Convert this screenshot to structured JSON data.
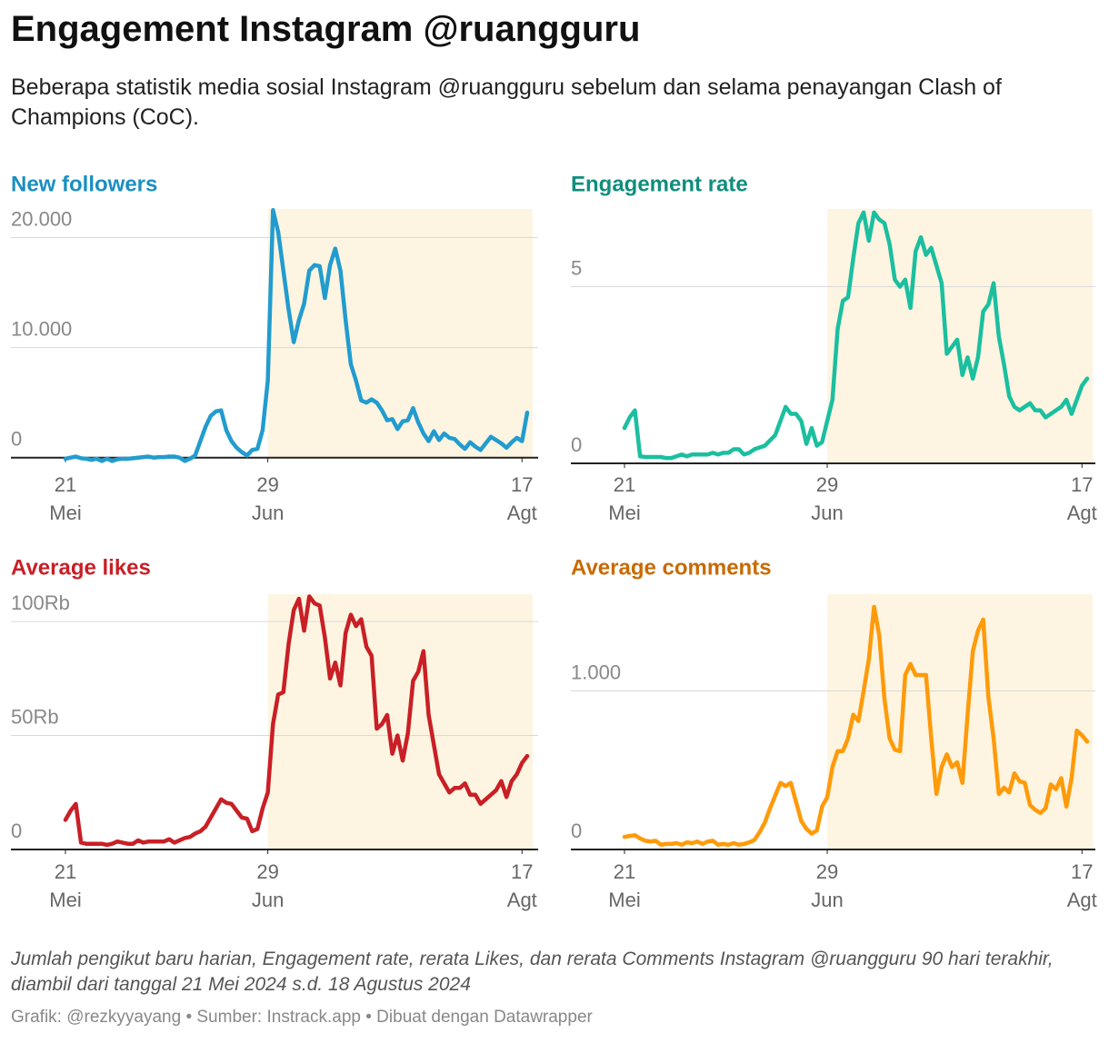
{
  "title": "Engagement Instagram @ruangguru",
  "subtitle": "Beberapa statistik media sosial Instagram @ruangguru sebelum dan selama penayangan Clash of Champions (CoC).",
  "note": "Jumlah pengikut baru harian, Engagement rate, rerata Likes, dan rerata Comments Instagram @ruangguru 90 hari terakhir, diambil dari tanggal 21 Mei 2024 s.d. 18 Agustus 2024",
  "credits": "Grafik: @rezkyyayang • Sumber: Instrack.app • Dibuat dengan Datawrapper",
  "chart_data": [
    {
      "type": "line",
      "title": "New followers",
      "title_color": "#1a8fc0",
      "color": "#229ccf",
      "x": [
        "21 Mei",
        "22 Mei",
        "23 Mei",
        "24 Mei",
        "25 Mei",
        "26 Mei",
        "27 Mei",
        "28 Mei",
        "29 Mei",
        "30 Mei",
        "31 Mei",
        "1 Jun",
        "2 Jun",
        "3 Jun",
        "4 Jun",
        "5 Jun",
        "6 Jun",
        "7 Jun",
        "8 Jun",
        "9 Jun",
        "10 Jun",
        "11 Jun",
        "12 Jun",
        "13 Jun",
        "14 Jun",
        "15 Jun",
        "16 Jun",
        "17 Jun",
        "18 Jun",
        "19 Jun",
        "20 Jun",
        "21 Jun",
        "22 Jun",
        "23 Jun",
        "24 Jun",
        "25 Jun",
        "26 Jun",
        "27 Jun",
        "28 Jun",
        "29 Jun",
        "30 Jun",
        "1 Jul",
        "2 Jul",
        "3 Jul",
        "4 Jul",
        "5 Jul",
        "6 Jul",
        "7 Jul",
        "8 Jul",
        "9 Jul",
        "10 Jul",
        "11 Jul",
        "12 Jul",
        "13 Jul",
        "14 Jul",
        "15 Jul",
        "16 Jul",
        "17 Jul",
        "18 Jul",
        "19 Jul",
        "20 Jul",
        "21 Jul",
        "22 Jul",
        "23 Jul",
        "24 Jul",
        "25 Jul",
        "26 Jul",
        "27 Jul",
        "28 Jul",
        "29 Jul",
        "30 Jul",
        "31 Jul",
        "1 Agt",
        "2 Agt",
        "3 Agt",
        "4 Agt",
        "5 Agt",
        "6 Agt",
        "7 Agt",
        "8 Agt",
        "9 Agt",
        "10 Agt",
        "11 Agt",
        "12 Agt",
        "13 Agt",
        "14 Agt",
        "15 Agt",
        "16 Agt",
        "17 Agt",
        "18 Agt"
      ],
      "values": [
        -100,
        0,
        100,
        -50,
        -100,
        -200,
        -100,
        -300,
        -100,
        -300,
        -150,
        -100,
        -100,
        -50,
        0,
        50,
        100,
        0,
        50,
        50,
        100,
        100,
        0,
        -300,
        -100,
        200,
        1500,
        2800,
        3800,
        4200,
        4300,
        2500,
        1500,
        900,
        500,
        200,
        700,
        800,
        2500,
        7000,
        22500,
        20500,
        17000,
        13500,
        10500,
        12500,
        14000,
        17000,
        17500,
        17400,
        14500,
        17500,
        19000,
        17000,
        12500,
        8500,
        7000,
        5200,
        5000,
        5300,
        5000,
        4300,
        3400,
        3500,
        2600,
        3300,
        3400,
        4500,
        3200,
        2200,
        1500,
        2400,
        1600,
        2200,
        1800,
        1700,
        1200,
        800,
        1400,
        1000,
        700,
        1300,
        1900,
        1600,
        1300,
        900,
        1400,
        1800,
        1500,
        4100
      ],
      "ylim": [
        -600,
        22600
      ],
      "yticks": [
        0,
        {
          "value": 10000,
          "label": "10.000"
        },
        {
          "value": 20000,
          "label": "20.000"
        }
      ],
      "xticks": [
        {
          "value": "21 Mei",
          "label": [
            "21",
            "Mei"
          ]
        },
        {
          "value": "29 Jun",
          "label": [
            "29",
            "Jun"
          ]
        },
        {
          "value": "17 Agt",
          "label": [
            "17",
            "Agt"
          ]
        }
      ],
      "highlight": {
        "from": "29 Jun",
        "to": "18 Agt",
        "color": "#fdf5e1"
      }
    },
    {
      "type": "line",
      "title": "Engagement rate",
      "title_color": "#0f8e7d",
      "color": "#1bbf9f",
      "x": [
        "21 Mei",
        "22 Mei",
        "23 Mei",
        "24 Mei",
        "25 Mei",
        "26 Mei",
        "27 Mei",
        "28 Mei",
        "29 Mei",
        "30 Mei",
        "31 Mei",
        "1 Jun",
        "2 Jun",
        "3 Jun",
        "4 Jun",
        "5 Jun",
        "6 Jun",
        "7 Jun",
        "8 Jun",
        "9 Jun",
        "10 Jun",
        "11 Jun",
        "12 Jun",
        "13 Jun",
        "14 Jun",
        "15 Jun",
        "16 Jun",
        "17 Jun",
        "18 Jun",
        "19 Jun",
        "20 Jun",
        "21 Jun",
        "22 Jun",
        "23 Jun",
        "24 Jun",
        "25 Jun",
        "26 Jun",
        "27 Jun",
        "28 Jun",
        "29 Jun",
        "30 Jun",
        "1 Jul",
        "2 Jul",
        "3 Jul",
        "4 Jul",
        "5 Jul",
        "6 Jul",
        "7 Jul",
        "8 Jul",
        "9 Jul",
        "10 Jul",
        "11 Jul",
        "12 Jul",
        "13 Jul",
        "14 Jul",
        "15 Jul",
        "16 Jul",
        "17 Jul",
        "18 Jul",
        "19 Jul",
        "20 Jul",
        "21 Jul",
        "22 Jul",
        "23 Jul",
        "24 Jul",
        "25 Jul",
        "26 Jul",
        "27 Jul",
        "28 Jul",
        "29 Jul",
        "30 Jul",
        "31 Jul",
        "1 Agt",
        "2 Agt",
        "3 Agt",
        "4 Agt",
        "5 Agt",
        "6 Agt",
        "7 Agt",
        "8 Agt",
        "9 Agt",
        "10 Agt",
        "11 Agt",
        "12 Agt",
        "13 Agt",
        "14 Agt",
        "15 Agt",
        "16 Agt",
        "17 Agt",
        "18 Agt"
      ],
      "values": [
        1.0,
        1.3,
        1.5,
        0.2,
        0.18,
        0.18,
        0.18,
        0.18,
        0.15,
        0.15,
        0.2,
        0.25,
        0.2,
        0.25,
        0.25,
        0.25,
        0.25,
        0.3,
        0.25,
        0.3,
        0.3,
        0.4,
        0.4,
        0.25,
        0.3,
        0.4,
        0.45,
        0.5,
        0.65,
        0.8,
        1.2,
        1.6,
        1.4,
        1.4,
        1.2,
        0.55,
        1.0,
        0.5,
        0.6,
        1.2,
        1.8,
        3.8,
        4.6,
        4.7,
        5.8,
        6.8,
        7.1,
        6.3,
        7.1,
        6.9,
        6.8,
        6.2,
        5.2,
        5.0,
        5.2,
        4.4,
        6.0,
        6.4,
        5.9,
        6.1,
        5.6,
        5.1,
        3.1,
        3.3,
        3.5,
        2.5,
        3.0,
        2.4,
        3.0,
        4.3,
        4.5,
        5.1,
        3.6,
        2.8,
        1.9,
        1.6,
        1.5,
        1.6,
        1.7,
        1.5,
        1.5,
        1.3,
        1.4,
        1.5,
        1.6,
        1.8,
        1.4,
        1.8,
        2.2,
        2.4
      ],
      "ylim": [
        0,
        7.2
      ],
      "yticks": [
        0,
        5
      ],
      "xticks": [
        {
          "value": "21 Mei",
          "label": [
            "21",
            "Mei"
          ]
        },
        {
          "value": "29 Jun",
          "label": [
            "29",
            "Jun"
          ]
        },
        {
          "value": "17 Agt",
          "label": [
            "17",
            "Agt"
          ]
        }
      ],
      "highlight": {
        "from": "29 Jun",
        "to": "18 Agt",
        "color": "#fdf5e1"
      }
    },
    {
      "type": "line",
      "title": "Average likes",
      "title_color": "#c91f26",
      "color": "#c91f26",
      "x": [
        "21 Mei",
        "22 Mei",
        "23 Mei",
        "24 Mei",
        "25 Mei",
        "26 Mei",
        "27 Mei",
        "28 Mei",
        "29 Mei",
        "30 Mei",
        "31 Mei",
        "1 Jun",
        "2 Jun",
        "3 Jun",
        "4 Jun",
        "5 Jun",
        "6 Jun",
        "7 Jun",
        "8 Jun",
        "9 Jun",
        "10 Jun",
        "11 Jun",
        "12 Jun",
        "13 Jun",
        "14 Jun",
        "15 Jun",
        "16 Jun",
        "17 Jun",
        "18 Jun",
        "19 Jun",
        "20 Jun",
        "21 Jun",
        "22 Jun",
        "23 Jun",
        "24 Jun",
        "25 Jun",
        "26 Jun",
        "27 Jun",
        "28 Jun",
        "29 Jun",
        "30 Jun",
        "1 Jul",
        "2 Jul",
        "3 Jul",
        "4 Jul",
        "5 Jul",
        "6 Jul",
        "7 Jul",
        "8 Jul",
        "9 Jul",
        "10 Jul",
        "11 Jul",
        "12 Jul",
        "13 Jul",
        "14 Jul",
        "15 Jul",
        "16 Jul",
        "17 Jul",
        "18 Jul",
        "19 Jul",
        "20 Jul",
        "21 Jul",
        "22 Jul",
        "23 Jul",
        "24 Jul",
        "25 Jul",
        "26 Jul",
        "27 Jul",
        "28 Jul",
        "29 Jul",
        "30 Jul",
        "31 Jul",
        "1 Agt",
        "2 Agt",
        "3 Agt",
        "4 Agt",
        "5 Agt",
        "6 Agt",
        "7 Agt",
        "8 Agt",
        "9 Agt",
        "10 Agt",
        "11 Agt",
        "12 Agt",
        "13 Agt",
        "14 Agt",
        "15 Agt",
        "16 Agt",
        "17 Agt",
        "18 Agt"
      ],
      "values": [
        13000,
        17000,
        20000,
        3000,
        2500,
        2500,
        2500,
        2500,
        2000,
        2500,
        3500,
        3000,
        2500,
        2500,
        4000,
        3000,
        3500,
        3500,
        3500,
        3500,
        4500,
        3000,
        4000,
        5000,
        5500,
        7000,
        8000,
        10000,
        14000,
        18000,
        22000,
        20500,
        20000,
        17000,
        14000,
        13500,
        8000,
        9000,
        18000,
        25000,
        55000,
        68000,
        69000,
        90000,
        105000,
        110000,
        96000,
        111000,
        108000,
        107000,
        93000,
        75000,
        82000,
        72000,
        95000,
        103000,
        98000,
        101000,
        89000,
        85000,
        53000,
        55000,
        59000,
        42000,
        50000,
        39000,
        51000,
        74000,
        78000,
        87000,
        59000,
        46000,
        33000,
        29000,
        25000,
        27000,
        27000,
        29000,
        24000,
        24000,
        20000,
        22000,
        24000,
        26000,
        30000,
        23000,
        30000,
        33000,
        38000,
        41000
      ],
      "ylim": [
        0,
        112000
      ],
      "yticks": [
        0,
        {
          "value": 50000,
          "label": "50Rb"
        },
        {
          "value": 100000,
          "label": "100Rb"
        }
      ],
      "xticks": [
        {
          "value": "21 Mei",
          "label": [
            "21",
            "Mei"
          ]
        },
        {
          "value": "29 Jun",
          "label": [
            "29",
            "Jun"
          ]
        },
        {
          "value": "17 Agt",
          "label": [
            "17",
            "Agt"
          ]
        }
      ],
      "highlight": {
        "from": "29 Jun",
        "to": "18 Agt",
        "color": "#fdf5e1"
      }
    },
    {
      "type": "line",
      "title": "Average comments",
      "title_color": "#c96a00",
      "color": "#ff9a0a",
      "x": [
        "21 Mei",
        "22 Mei",
        "23 Mei",
        "24 Mei",
        "25 Mei",
        "26 Mei",
        "27 Mei",
        "28 Mei",
        "29 Mei",
        "30 Mei",
        "31 Mei",
        "1 Jun",
        "2 Jun",
        "3 Jun",
        "4 Jun",
        "5 Jun",
        "6 Jun",
        "7 Jun",
        "8 Jun",
        "9 Jun",
        "10 Jun",
        "11 Jun",
        "12 Jun",
        "13 Jun",
        "14 Jun",
        "15 Jun",
        "16 Jun",
        "17 Jun",
        "18 Jun",
        "19 Jun",
        "20 Jun",
        "21 Jun",
        "22 Jun",
        "23 Jun",
        "24 Jun",
        "25 Jun",
        "26 Jun",
        "27 Jun",
        "28 Jun",
        "29 Jun",
        "30 Jun",
        "1 Jul",
        "2 Jul",
        "3 Jul",
        "4 Jul",
        "5 Jul",
        "6 Jul",
        "7 Jul",
        "8 Jul",
        "9 Jul",
        "10 Jul",
        "11 Jul",
        "12 Jul",
        "13 Jul",
        "14 Jul",
        "15 Jul",
        "16 Jul",
        "17 Jul",
        "18 Jul",
        "19 Jul",
        "20 Jul",
        "21 Jul",
        "22 Jul",
        "23 Jul",
        "24 Jul",
        "25 Jul",
        "26 Jul",
        "27 Jul",
        "28 Jul",
        "29 Jul",
        "30 Jul",
        "31 Jul",
        "1 Agt",
        "2 Agt",
        "3 Agt",
        "4 Agt",
        "5 Agt",
        "6 Agt",
        "7 Agt",
        "8 Agt",
        "9 Agt",
        "10 Agt",
        "11 Agt",
        "12 Agt",
        "13 Agt",
        "14 Agt",
        "15 Agt",
        "16 Agt",
        "17 Agt",
        "18 Agt"
      ],
      "values": [
        80,
        85,
        90,
        70,
        55,
        50,
        55,
        30,
        35,
        35,
        40,
        30,
        45,
        40,
        50,
        35,
        50,
        55,
        30,
        35,
        30,
        40,
        30,
        35,
        45,
        60,
        110,
        170,
        260,
        340,
        420,
        400,
        420,
        300,
        180,
        130,
        100,
        120,
        270,
        330,
        520,
        620,
        620,
        700,
        850,
        810,
        1000,
        1200,
        1530,
        1350,
        950,
        700,
        630,
        620,
        1100,
        1170,
        1100,
        1100,
        1100,
        700,
        350,
        520,
        600,
        520,
        550,
        420,
        850,
        1250,
        1380,
        1450,
        960,
        700,
        350,
        390,
        360,
        480,
        430,
        420,
        280,
        250,
        230,
        260,
        410,
        380,
        450,
        270,
        450,
        750,
        720,
        680
      ],
      "ylim": [
        0,
        1610
      ],
      "yticks": [
        0,
        {
          "value": 1000,
          "label": "1.000"
        }
      ],
      "xticks": [
        {
          "value": "21 Mei",
          "label": [
            "21",
            "Mei"
          ]
        },
        {
          "value": "29 Jun",
          "label": [
            "29",
            "Jun"
          ]
        },
        {
          "value": "17 Agt",
          "label": [
            "17",
            "Agt"
          ]
        }
      ],
      "highlight": {
        "from": "29 Jun",
        "to": "18 Agt",
        "color": "#fdf5e1"
      }
    }
  ]
}
